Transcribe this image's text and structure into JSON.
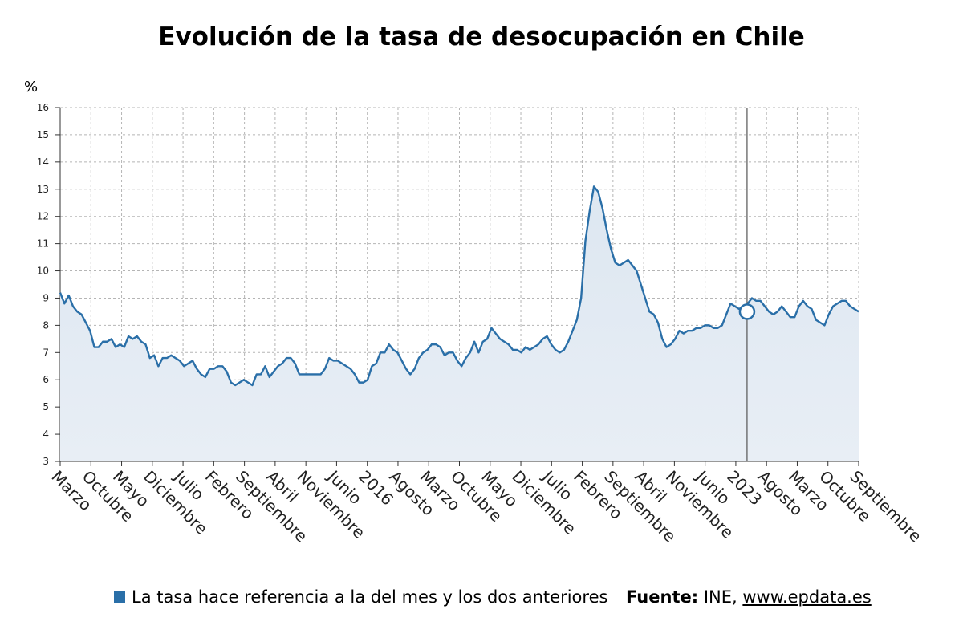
{
  "title": "Evolución de la tasa de desocupación en Chile",
  "legend": {
    "label": "La tasa hace referencia a la del mes y los dos anteriores",
    "color": "#2a6fa8"
  },
  "source": {
    "label": "Fuente:",
    "text": "INE,",
    "link": "www.epdata.es"
  },
  "colors": {
    "line": "#2a6fa8",
    "area": "#e8eef5",
    "grid": "#b5b5b5",
    "marker_line": "#555555"
  },
  "chart_data": {
    "type": "area",
    "title": "Evolución de la tasa de desocupación en Chile",
    "ylabel": "%",
    "xlabel": "",
    "ylim": [
      3,
      16
    ],
    "yticks": [
      3,
      4,
      5,
      6,
      7,
      8,
      9,
      10,
      11,
      12,
      13,
      14,
      15,
      16
    ],
    "grid": true,
    "x_tick_labels": [
      "Marzo",
      "Octubre",
      "Mayo",
      "Diciembre",
      "Julio",
      "Febrero",
      "Septiembre",
      "Abril",
      "Noviembre",
      "Junio",
      "2016",
      "Agosto",
      "Marzo",
      "Octubre",
      "Mayo",
      "Diciembre",
      "Julio",
      "Febrero",
      "Septiembre",
      "Abril",
      "Noviembre",
      "Junio",
      "2023",
      "Agosto",
      "Marzo",
      "Octubre",
      "Septiembre"
    ],
    "highlight": {
      "label": "2023",
      "value": 8.5
    },
    "series": [
      {
        "values": [
          9.2,
          8.8,
          9.1,
          8.7,
          8.5,
          8.4,
          8.1,
          7.8,
          7.2,
          7.2,
          7.4,
          7.4,
          7.5,
          7.2,
          7.3,
          7.2,
          7.6,
          7.5,
          7.6,
          7.4,
          7.3,
          6.8,
          6.9,
          6.5,
          6.8,
          6.8,
          6.9,
          6.8,
          6.7,
          6.5,
          6.6,
          6.7,
          6.4,
          6.2,
          6.1,
          6.4,
          6.4,
          6.5,
          6.5,
          6.3,
          5.9,
          5.8,
          5.9,
          6.0,
          5.9,
          5.8,
          6.2,
          6.2,
          6.5,
          6.1,
          6.3,
          6.5,
          6.6,
          6.8,
          6.8,
          6.6,
          6.2,
          6.2,
          6.2,
          6.2,
          6.2,
          6.2,
          6.4,
          6.8,
          6.7,
          6.7,
          6.6,
          6.5,
          6.4,
          6.2,
          5.9,
          5.9,
          6.0,
          6.5,
          6.6,
          7.0,
          7.0,
          7.3,
          7.1,
          7.0,
          6.7,
          6.4,
          6.2,
          6.4,
          6.8,
          7.0,
          7.1,
          7.3,
          7.3,
          7.2,
          6.9,
          7.0,
          7.0,
          6.7,
          6.5,
          6.8,
          7.0,
          7.4,
          7.0,
          7.4,
          7.5,
          7.9,
          7.7,
          7.5,
          7.4,
          7.3,
          7.1,
          7.1,
          7.0,
          7.2,
          7.1,
          7.2,
          7.3,
          7.5,
          7.6,
          7.3,
          7.1,
          7.0,
          7.1,
          7.4,
          7.8,
          8.2,
          9.0,
          11.1,
          12.2,
          13.1,
          12.9,
          12.3,
          11.5,
          10.8,
          10.3,
          10.2,
          10.3,
          10.4,
          10.2,
          10.0,
          9.5,
          9.0,
          8.5,
          8.4,
          8.1,
          7.5,
          7.2,
          7.3,
          7.5,
          7.8,
          7.7,
          7.8,
          7.8,
          7.9,
          7.9,
          8.0,
          8.0,
          7.9,
          7.9,
          8.0,
          8.4,
          8.8,
          8.7,
          8.6,
          8.7,
          8.8,
          9.0,
          8.9,
          8.9,
          8.7,
          8.5,
          8.4,
          8.5,
          8.7,
          8.5,
          8.3,
          8.3,
          8.7,
          8.9,
          8.7,
          8.6,
          8.2,
          8.1,
          8.0,
          8.4,
          8.7,
          8.8,
          8.9,
          8.9,
          8.7,
          8.6,
          8.5
        ]
      }
    ]
  }
}
